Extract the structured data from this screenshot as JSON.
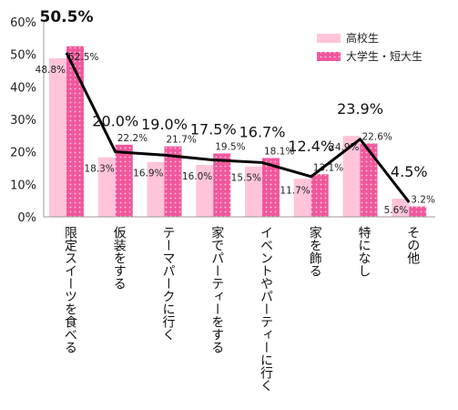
{
  "chart_data": {
    "type": "bar",
    "categories": [
      "限定スイーツを食べる",
      "仮装をする",
      "テーマパークに行く",
      "家でパーティーをする",
      "イベントやパーティーに行く",
      "家を飾る",
      "特になし",
      "その他"
    ],
    "series": [
      {
        "name": "高校生",
        "values": [
          48.8,
          18.3,
          16.9,
          16.0,
          15.5,
          11.7,
          24.9,
          5.6
        ],
        "color": "#ffc4da"
      },
      {
        "name": "大学生・短大生",
        "values": [
          52.5,
          22.2,
          21.7,
          19.5,
          18.1,
          13.1,
          22.6,
          3.2
        ],
        "color": "#f0579c"
      }
    ],
    "line": {
      "values": [
        50.5,
        20.0,
        19.0,
        17.5,
        16.7,
        12.4,
        23.9,
        4.5
      ],
      "color": "#000000"
    },
    "ylim": [
      0,
      60
    ],
    "yticks": [
      "0%",
      "10%",
      "20%",
      "30%",
      "40%",
      "50%",
      "60%"
    ],
    "legend_position": "top-right",
    "grid": false
  }
}
